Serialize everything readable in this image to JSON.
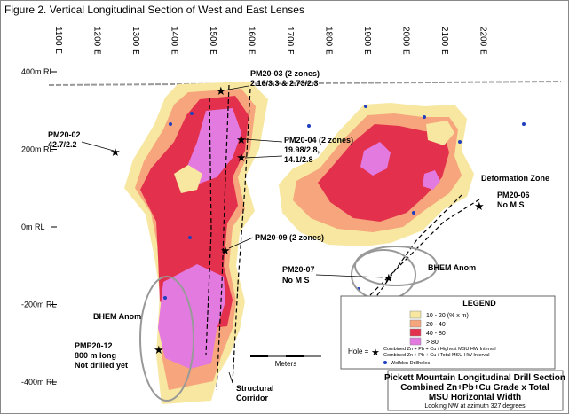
{
  "title": "Figure 2. Vertical Longitudinal Section of West and East Lenses",
  "eastings": [
    "1100 E",
    "1200 E",
    "1300 E",
    "1400 E",
    "1500 E",
    "1600 E",
    "1700 E",
    "1800 E",
    "1900 E",
    "2000 E",
    "2100 E",
    "2200 E"
  ],
  "elevations": [
    "400m RL",
    "200m RL",
    "0m RL",
    "-200m RL",
    "-400m RL"
  ],
  "annotations": {
    "pm20_03": [
      "PM20-03  (2 zones)",
      "2.16/3.3  & 2.73/2.3"
    ],
    "pm20_02": [
      "PM20-02",
      "42.7/2.2"
    ],
    "pm20_04": [
      "PM20-04  (2 zones)",
      "19.98/2.8,",
      "14.1/2.8"
    ],
    "pm20_09": [
      "PM20-09  (2 zones)"
    ],
    "pm20_07": [
      "PM20-07",
      "No M S"
    ],
    "deformation": [
      "Deformation Zone"
    ],
    "pm20_06": [
      "PM20-06",
      "No M S"
    ],
    "bhem_west": [
      "BHEM Anom"
    ],
    "bhem_east": [
      "BHEM Anom"
    ],
    "pmp20_12": [
      "PMP20-12",
      "800  m long",
      "Not drilled yet"
    ],
    "corridor": [
      "Structural",
      "Corridor"
    ],
    "scale": [
      "Meters"
    ]
  },
  "legend": {
    "title": "LEGEND",
    "items": [
      {
        "label": "10 - 20  (% x m)",
        "color": "#f7e7a0"
      },
      {
        "label": "20 - 40",
        "color": "#f6a57c"
      },
      {
        "label": "40 - 80",
        "color": "#e3304c"
      },
      {
        "label": "> 80",
        "color": "#e27ae0"
      }
    ],
    "hole_label": "Hole =",
    "hole_notes": [
      "Combined Zn + Pb + Cu / Highest MSU HW Interval",
      "Combined Zn + Pb + Cu / Total MSU HW Interval"
    ],
    "wolfden": "Wolfden Drillholes"
  },
  "title_block": {
    "lines": [
      "Pickett Mountain Longitudinal Drill Section",
      "Combined Zn+Pb+Cu Grade x Total",
      "MSU Horizontal Width"
    ],
    "note": "Looking NW at azimuth 327 degrees"
  }
}
